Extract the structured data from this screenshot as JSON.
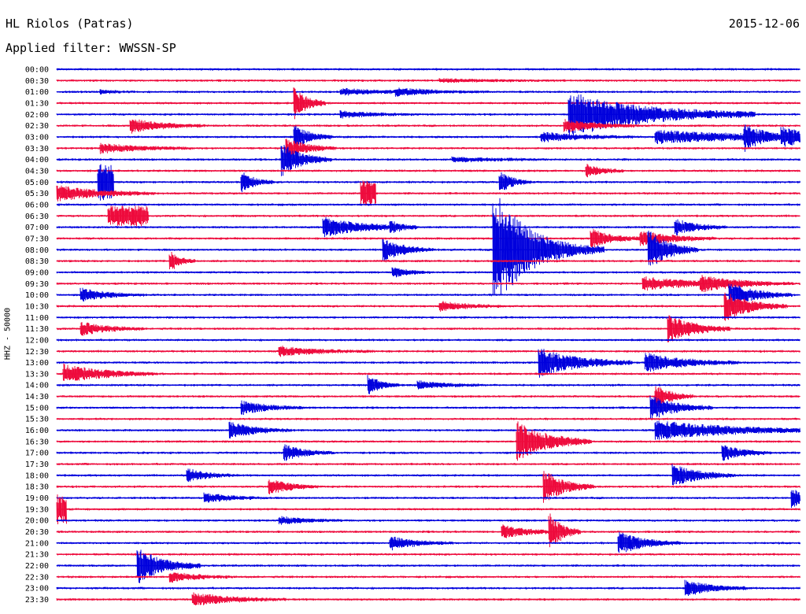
{
  "header": {
    "station": "HL Riolos (Patras)",
    "date": "2015-12-06",
    "filter": "Applied filter: WWSSN-SP"
  },
  "colors": {
    "trace_a": "#0000dd",
    "trace_b": "#ee0a3c",
    "text": "#000000"
  },
  "chart_data": {
    "type": "line",
    "ylabel": "HHZ - 50000",
    "row_labels": [
      "00:00",
      "00:30",
      "01:00",
      "01:30",
      "02:00",
      "02:30",
      "03:00",
      "03:30",
      "04:00",
      "04:30",
      "05:00",
      "05:30",
      "06:00",
      "06:30",
      "07:00",
      "07:30",
      "08:00",
      "08:30",
      "09:00",
      "09:30",
      "10:00",
      "10:30",
      "11:00",
      "11:30",
      "12:00",
      "12:30",
      "13:00",
      "13:30",
      "14:00",
      "14:30",
      "15:00",
      "15:30",
      "16:00",
      "16:30",
      "17:00",
      "17:30",
      "18:00",
      "18:30",
      "19:00",
      "19:30",
      "20:00",
      "20:30",
      "21:00",
      "21:30",
      "22:00",
      "22:30",
      "23:00",
      "23:30"
    ],
    "x_minutes_per_row": 30,
    "events": [
      {
        "row": 1,
        "minute": 15.5,
        "amp": 2,
        "dur": 2.0
      },
      {
        "row": 2,
        "minute": 11.5,
        "amp": 4,
        "dur": 1.5
      },
      {
        "row": 2,
        "minute": 13.7,
        "amp": 4,
        "dur": 1.5
      },
      {
        "row": 2,
        "minute": 1.8,
        "amp": 2,
        "dur": 0.6
      },
      {
        "row": 4,
        "minute": 11.5,
        "amp": 4,
        "dur": 1.2
      },
      {
        "row": 4,
        "minute": 20.7,
        "amp": 28,
        "dur": 3.0
      },
      {
        "row": 5,
        "minute": 3.0,
        "amp": 9,
        "dur": 1.2
      },
      {
        "row": 5,
        "minute": 20.5,
        "amp": 8,
        "dur": 1.2
      },
      {
        "row": 3,
        "minute": 9.6,
        "amp": 20,
        "dur": 0.5
      },
      {
        "row": 6,
        "minute": 9.6,
        "amp": 15,
        "dur": 0.6
      },
      {
        "row": 6,
        "minute": 19.6,
        "amp": 6,
        "dur": 1.5
      },
      {
        "row": 6,
        "minute": 24.2,
        "amp": 8,
        "dur": 4.0
      },
      {
        "row": 6,
        "minute": 27.8,
        "amp": 15,
        "dur": 0.6
      },
      {
        "row": 6,
        "minute": 29.3,
        "amp": 10,
        "dur": 1.2
      },
      {
        "row": 7,
        "minute": 1.8,
        "amp": 6,
        "dur": 1.5
      },
      {
        "row": 7,
        "minute": 9.3,
        "amp": 12,
        "dur": 0.8
      },
      {
        "row": 8,
        "minute": 9.1,
        "amp": 20,
        "dur": 0.8
      },
      {
        "row": 8,
        "minute": 16.0,
        "amp": 3,
        "dur": 1.5
      },
      {
        "row": 10,
        "minute": 1.7,
        "amp": 22,
        "dur": 0.6,
        "block": true,
        "w": 0.6
      },
      {
        "row": 11,
        "minute": 12.3,
        "amp": 16,
        "dur": 0.6,
        "block": true,
        "w": 0.6
      },
      {
        "row": 11,
        "minute": 0.0,
        "amp": 10,
        "dur": 1.6
      },
      {
        "row": 10,
        "minute": 7.5,
        "amp": 12,
        "dur": 0.5
      },
      {
        "row": 10,
        "minute": 17.9,
        "amp": 14,
        "dur": 0.5
      },
      {
        "row": 9,
        "minute": 21.4,
        "amp": 8,
        "dur": 0.6
      },
      {
        "row": 13,
        "minute": 2.2,
        "amp": 12,
        "dur": 1.5,
        "block": true,
        "w": 1.5
      },
      {
        "row": 14,
        "minute": 10.8,
        "amp": 12,
        "dur": 1.5
      },
      {
        "row": 14,
        "minute": 13.5,
        "amp": 6,
        "dur": 0.4
      },
      {
        "row": 14,
        "minute": 25.0,
        "amp": 10,
        "dur": 0.8
      },
      {
        "row": 15,
        "minute": 21.6,
        "amp": 12,
        "dur": 0.8
      },
      {
        "row": 15,
        "minute": 23.6,
        "amp": 10,
        "dur": 1.2
      },
      {
        "row": 16,
        "minute": 13.2,
        "amp": 14,
        "dur": 0.8
      },
      {
        "row": 16,
        "minute": 17.6,
        "amp": 80,
        "dur": 1.5,
        "quake": true
      },
      {
        "row": 16,
        "minute": 23.9,
        "amp": 25,
        "dur": 0.8
      },
      {
        "row": 17,
        "minute": 4.6,
        "amp": 12,
        "dur": 0.4
      },
      {
        "row": 18,
        "minute": 13.6,
        "amp": 6,
        "dur": 0.6
      },
      {
        "row": 19,
        "minute": 23.7,
        "amp": 8,
        "dur": 2.0
      },
      {
        "row": 19,
        "minute": 26.0,
        "amp": 8,
        "dur": 1.5
      },
      {
        "row": 20,
        "minute": 1.0,
        "amp": 8,
        "dur": 1.0
      },
      {
        "row": 20,
        "minute": 27.2,
        "amp": 15,
        "dur": 1.0
      },
      {
        "row": 21,
        "minute": 15.5,
        "amp": 6,
        "dur": 1.0
      },
      {
        "row": 21,
        "minute": 27.0,
        "amp": 18,
        "dur": 1.0
      },
      {
        "row": 23,
        "minute": 1.0,
        "amp": 8,
        "dur": 1.0
      },
      {
        "row": 23,
        "minute": 24.7,
        "amp": 18,
        "dur": 1.0
      },
      {
        "row": 25,
        "minute": 9.0,
        "amp": 6,
        "dur": 1.5
      },
      {
        "row": 26,
        "minute": 19.5,
        "amp": 18,
        "dur": 1.5
      },
      {
        "row": 26,
        "minute": 23.8,
        "amp": 12,
        "dur": 1.5
      },
      {
        "row": 27,
        "minute": 0.3,
        "amp": 12,
        "dur": 1.5
      },
      {
        "row": 28,
        "minute": 12.6,
        "amp": 12,
        "dur": 0.5
      },
      {
        "row": 28,
        "minute": 14.6,
        "amp": 5,
        "dur": 1.0
      },
      {
        "row": 29,
        "minute": 24.2,
        "amp": 15,
        "dur": 0.6
      },
      {
        "row": 30,
        "minute": 7.5,
        "amp": 8,
        "dur": 1.0
      },
      {
        "row": 30,
        "minute": 24.0,
        "amp": 15,
        "dur": 1.0
      },
      {
        "row": 32,
        "minute": 24.2,
        "amp": 12,
        "dur": 3.0
      },
      {
        "row": 32,
        "minute": 7.0,
        "amp": 10,
        "dur": 1.0
      },
      {
        "row": 33,
        "minute": 18.6,
        "amp": 25,
        "dur": 1.2
      },
      {
        "row": 34,
        "minute": 9.2,
        "amp": 10,
        "dur": 0.8
      },
      {
        "row": 34,
        "minute": 26.9,
        "amp": 10,
        "dur": 0.8
      },
      {
        "row": 36,
        "minute": 5.3,
        "amp": 8,
        "dur": 0.8
      },
      {
        "row": 36,
        "minute": 24.9,
        "amp": 14,
        "dur": 1.0
      },
      {
        "row": 37,
        "minute": 19.7,
        "amp": 20,
        "dur": 0.8
      },
      {
        "row": 37,
        "minute": 8.6,
        "amp": 10,
        "dur": 0.8
      },
      {
        "row": 38,
        "minute": 6.0,
        "amp": 6,
        "dur": 1.0
      },
      {
        "row": 38,
        "minute": 29.7,
        "amp": 12,
        "dur": 0.5
      },
      {
        "row": 39,
        "minute": 0.0,
        "amp": 18,
        "dur": 1.2,
        "block": true,
        "w": 0.4
      },
      {
        "row": 40,
        "minute": 9.0,
        "amp": 5,
        "dur": 1.0
      },
      {
        "row": 41,
        "minute": 18.0,
        "amp": 8,
        "dur": 1.0
      },
      {
        "row": 41,
        "minute": 19.9,
        "amp": 22,
        "dur": 0.5
      },
      {
        "row": 42,
        "minute": 13.5,
        "amp": 8,
        "dur": 1.0
      },
      {
        "row": 42,
        "minute": 22.7,
        "amp": 14,
        "dur": 1.0
      },
      {
        "row": 44,
        "minute": 3.3,
        "amp": 22,
        "dur": 1.0
      },
      {
        "row": 45,
        "minute": 4.6,
        "amp": 6,
        "dur": 1.0
      },
      {
        "row": 46,
        "minute": 25.4,
        "amp": 10,
        "dur": 1.0
      },
      {
        "row": 47,
        "minute": 5.5,
        "amp": 8,
        "dur": 1.5
      }
    ]
  }
}
